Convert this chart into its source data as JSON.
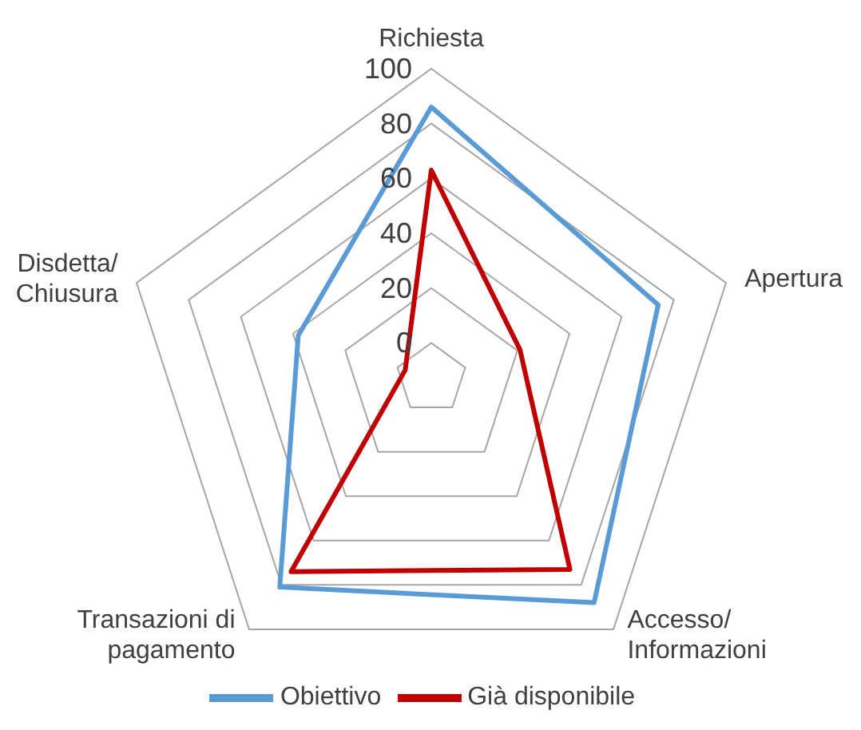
{
  "chart_data": {
    "type": "radar",
    "categories": [
      "Richiesta",
      "Apertura",
      "Accesso/ Informazioni",
      "Transazioni di pagamento",
      "Disdetta/ Chiusura"
    ],
    "series": [
      {
        "name": "Obiettivo",
        "color": "#5b9bd5",
        "values": [
          86,
          74,
          88,
          81,
          38
        ]
      },
      {
        "name": "Già disponibile",
        "color": "#c00000",
        "values": [
          63,
          21,
          73,
          74,
          -3
        ]
      }
    ],
    "ylim": [
      -13,
      100
    ],
    "yticks": [
      0,
      20,
      40,
      60,
      80,
      100
    ],
    "grid": true,
    "legend": "bottom"
  }
}
